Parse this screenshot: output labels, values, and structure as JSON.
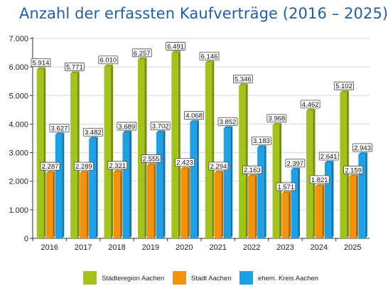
{
  "title": "Anzahl der erfassten Kaufverträge (2016 – 2025)",
  "chart_data": {
    "type": "bar",
    "categories": [
      "2016",
      "2017",
      "2018",
      "2019",
      "2020",
      "2021",
      "2022",
      "2023",
      "2024",
      "2025"
    ],
    "series": [
      {
        "name": "Städteregion Aachen",
        "color": "#a3c21a",
        "values": [
          5914,
          5771,
          6010,
          6257,
          6491,
          6146,
          5346,
          3968,
          4462,
          5102
        ],
        "labels": [
          "5.914",
          "5.771",
          "6.010",
          "6.257",
          "6.491",
          "6.146",
          "5.346",
          "3.968",
          "4.462",
          "5.102"
        ]
      },
      {
        "name": "Stadt Aachen",
        "color": "#f5920b",
        "values": [
          2287,
          2289,
          2321,
          2555,
          2423,
          2294,
          2163,
          1571,
          1821,
          2159
        ],
        "labels": [
          "2.287",
          "2.289",
          "2.321",
          "2.555",
          "2.423",
          "2.294",
          "2.163",
          "1.571",
          "1.821",
          "2.159"
        ]
      },
      {
        "name": "ehem. Kreis Aachen",
        "color": "#1da1e6",
        "values": [
          3627,
          3482,
          3689,
          3702,
          4068,
          3852,
          3183,
          2397,
          2641,
          2943
        ],
        "labels": [
          "3.627",
          "3.482",
          "3.689",
          "3.702",
          "4.068",
          "3.852",
          "3.183",
          "2.397",
          "2.641",
          "2.943"
        ]
      }
    ],
    "ylim": [
      0,
      7000
    ],
    "yticks": [
      0,
      1000,
      2000,
      3000,
      4000,
      5000,
      6000,
      7000
    ],
    "ytick_labels": [
      "0",
      "1.000",
      "2.000",
      "3.000",
      "4.000",
      "5.000",
      "6.000",
      "7.000"
    ],
    "grid": true,
    "legend_position": "bottom"
  }
}
